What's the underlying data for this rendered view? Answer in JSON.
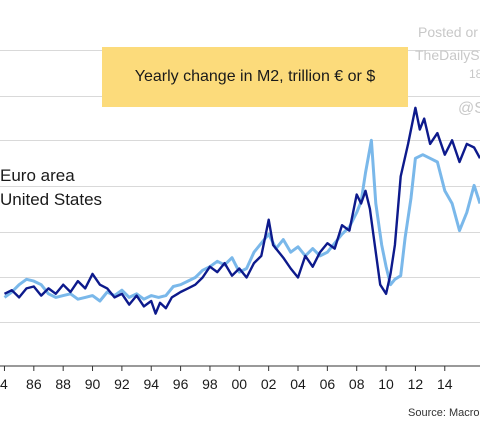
{
  "watermark": {
    "line1": "Posted or",
    "line2": "TheDailyS",
    "line3": "18",
    "line4": "@S"
  },
  "chart_data": {
    "type": "line",
    "title": "Yearly change in M2, trillion € or $",
    "source": "Source: Macro",
    "xlabel": "",
    "ylabel": "",
    "x_ticks": [
      "4",
      "86",
      "88",
      "90",
      "92",
      "94",
      "96",
      "98",
      "00",
      "02",
      "04",
      "06",
      "08",
      "10",
      "12",
      "14"
    ],
    "x_tick_years": [
      1984,
      1986,
      1988,
      1990,
      1992,
      1994,
      1996,
      1998,
      2000,
      2002,
      2004,
      2006,
      2008,
      2010,
      2012,
      2014
    ],
    "xlim": [
      1983.9,
      2016.4
    ],
    "ylim": [
      -0.35,
      1.4
    ],
    "grid": true,
    "legend": [
      "Euro area",
      "United States"
    ],
    "series": [
      {
        "name": "Euro area",
        "color": "#0d1a8c",
        "x": [
          1984,
          1984.5,
          1985,
          1985.5,
          1986,
          1986.5,
          1987,
          1987.5,
          1988,
          1988.5,
          1989,
          1989.5,
          1990,
          1990.5,
          1991,
          1991.5,
          1992,
          1992.5,
          1993,
          1993.5,
          1994,
          1994.3,
          1994.6,
          1995,
          1995.4,
          1995.8,
          1996,
          1996.5,
          1997,
          1997.5,
          1998,
          1998.5,
          1999,
          1999.5,
          2000,
          2000.5,
          2001,
          2001.5,
          2002,
          2002.3,
          2002.7,
          2003,
          2003.5,
          2004,
          2004.5,
          2005,
          2005.5,
          2006,
          2006.5,
          2007,
          2007.5,
          2008,
          2008.3,
          2008.6,
          2008.9,
          2009.2,
          2009.6,
          2010,
          2010.3,
          2010.6,
          2011,
          2011.5,
          2012,
          2012.3,
          2012.6,
          2013,
          2013.5,
          2014,
          2014.5,
          2015,
          2015.5,
          2016,
          2016.4
        ],
        "y": [
          0.05,
          0.07,
          0.03,
          0.08,
          0.09,
          0.04,
          0.08,
          0.05,
          0.1,
          0.06,
          0.12,
          0.08,
          0.16,
          0.1,
          0.08,
          0.03,
          0.05,
          -0.01,
          0.04,
          -0.02,
          0.01,
          -0.06,
          0.0,
          -0.03,
          0.03,
          0.05,
          0.06,
          0.08,
          0.1,
          0.14,
          0.2,
          0.17,
          0.22,
          0.15,
          0.19,
          0.14,
          0.22,
          0.26,
          0.46,
          0.32,
          0.28,
          0.25,
          0.19,
          0.14,
          0.26,
          0.2,
          0.28,
          0.33,
          0.3,
          0.43,
          0.4,
          0.6,
          0.55,
          0.62,
          0.52,
          0.34,
          0.1,
          0.05,
          0.16,
          0.32,
          0.7,
          0.88,
          1.08,
          0.96,
          1.02,
          0.88,
          0.94,
          0.82,
          0.9,
          0.78,
          0.88,
          0.86,
          0.8
        ]
      },
      {
        "name": "United States",
        "color": "#7ab8ea",
        "x": [
          1984,
          1984.5,
          1985,
          1985.5,
          1986,
          1986.5,
          1987,
          1987.5,
          1988,
          1988.5,
          1989,
          1989.5,
          1990,
          1990.5,
          1991,
          1991.5,
          1992,
          1992.5,
          1993,
          1993.5,
          1994,
          1994.5,
          1995,
          1995.5,
          1996,
          1996.5,
          1997,
          1997.5,
          1998,
          1998.5,
          1999,
          1999.5,
          2000,
          2000.5,
          2001,
          2001.5,
          2002,
          2002.5,
          2003,
          2003.5,
          2004,
          2004.5,
          2005,
          2005.5,
          2006,
          2006.5,
          2007,
          2007.5,
          2008,
          2008.3,
          2008.6,
          2009,
          2009.3,
          2009.7,
          2010,
          2010.3,
          2010.6,
          2011,
          2011.3,
          2011.7,
          2012,
          2012.5,
          2013,
          2013.5,
          2014,
          2014.5,
          2015,
          2015.5,
          2016,
          2016.4
        ],
        "y": [
          0.03,
          0.06,
          0.1,
          0.13,
          0.12,
          0.1,
          0.05,
          0.03,
          0.04,
          0.05,
          0.02,
          0.03,
          0.04,
          0.01,
          0.06,
          0.04,
          0.07,
          0.03,
          0.05,
          0.02,
          0.04,
          0.03,
          0.04,
          0.09,
          0.1,
          0.12,
          0.14,
          0.18,
          0.2,
          0.23,
          0.21,
          0.25,
          0.17,
          0.19,
          0.28,
          0.33,
          0.38,
          0.3,
          0.35,
          0.28,
          0.31,
          0.26,
          0.3,
          0.26,
          0.28,
          0.33,
          0.38,
          0.42,
          0.5,
          0.56,
          0.72,
          0.9,
          0.55,
          0.32,
          0.2,
          0.1,
          0.13,
          0.15,
          0.36,
          0.58,
          0.8,
          0.82,
          0.8,
          0.78,
          0.62,
          0.55,
          0.4,
          0.5,
          0.65,
          0.55
        ]
      }
    ]
  }
}
